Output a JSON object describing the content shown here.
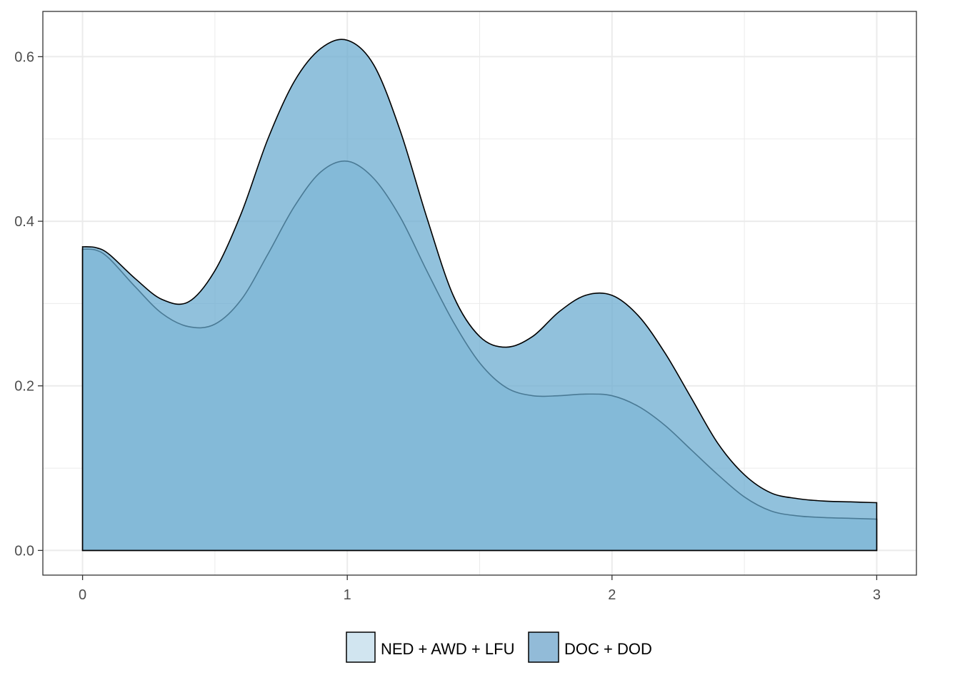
{
  "chart_data": {
    "type": "area",
    "title": "",
    "xlabel": "",
    "ylabel": "",
    "xlim": [
      -0.15,
      3.15
    ],
    "ylim": [
      -0.03,
      0.655
    ],
    "x_ticks": [
      0,
      1,
      2,
      3
    ],
    "x_tick_labels": [
      "0",
      "1",
      "2",
      "3"
    ],
    "y_ticks": [
      0.0,
      0.2,
      0.4,
      0.6
    ],
    "y_tick_labels": [
      "0.0",
      "0.2",
      "0.4",
      "0.6"
    ],
    "grid": true,
    "legend_position": "bottom",
    "series": [
      {
        "name": "NED + AWD + LFU",
        "color": "#d1e5f0",
        "x": [
          0,
          0.05,
          0.1,
          0.2,
          0.3,
          0.4,
          0.5,
          0.6,
          0.7,
          0.8,
          0.9,
          1.0,
          1.1,
          1.2,
          1.3,
          1.4,
          1.5,
          1.6,
          1.7,
          1.8,
          1.9,
          2.0,
          2.1,
          2.2,
          2.3,
          2.4,
          2.5,
          2.6,
          2.7,
          2.8,
          2.9,
          3.0
        ],
        "values": [
          0.366,
          0.365,
          0.355,
          0.32,
          0.288,
          0.272,
          0.275,
          0.305,
          0.36,
          0.418,
          0.46,
          0.473,
          0.452,
          0.405,
          0.34,
          0.278,
          0.228,
          0.198,
          0.188,
          0.188,
          0.19,
          0.188,
          0.175,
          0.152,
          0.122,
          0.092,
          0.065,
          0.048,
          0.042,
          0.04,
          0.039,
          0.038
        ]
      },
      {
        "name": "DOC + DOD",
        "color": "#67a9cf",
        "x": [
          0,
          0.05,
          0.1,
          0.2,
          0.3,
          0.4,
          0.5,
          0.6,
          0.7,
          0.8,
          0.9,
          1.0,
          1.1,
          1.2,
          1.3,
          1.4,
          1.5,
          1.6,
          1.7,
          1.8,
          1.9,
          2.0,
          2.1,
          2.2,
          2.3,
          2.4,
          2.5,
          2.6,
          2.7,
          2.8,
          2.9,
          3.0
        ],
        "values": [
          0.369,
          0.368,
          0.36,
          0.33,
          0.305,
          0.302,
          0.34,
          0.41,
          0.5,
          0.57,
          0.61,
          0.62,
          0.59,
          0.51,
          0.405,
          0.31,
          0.26,
          0.247,
          0.26,
          0.29,
          0.31,
          0.31,
          0.285,
          0.24,
          0.185,
          0.13,
          0.092,
          0.07,
          0.063,
          0.06,
          0.059,
          0.058
        ]
      }
    ]
  }
}
